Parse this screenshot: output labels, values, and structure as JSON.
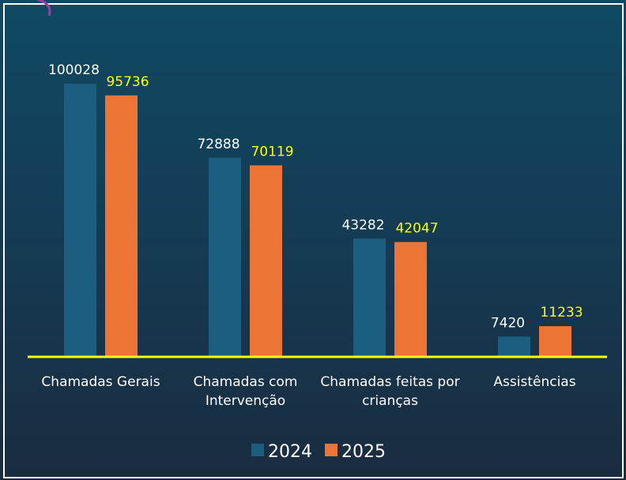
{
  "chart_data": {
    "type": "bar",
    "categories": [
      "Chamadas Gerais",
      "Chamadas com Intervenção",
      "Chamadas feitas por crianças",
      "Assistências"
    ],
    "series": [
      {
        "name": "2024",
        "color": "#1b5e80",
        "values": [
          100028,
          72888,
          43282,
          7420
        ]
      },
      {
        "name": "2025",
        "color": "#ec7434",
        "values": [
          95736,
          70119,
          42047,
          11233
        ]
      }
    ],
    "value_label_colors": [
      "#ffffff",
      "#ffff00"
    ],
    "baseline_color": "#ffff00"
  }
}
